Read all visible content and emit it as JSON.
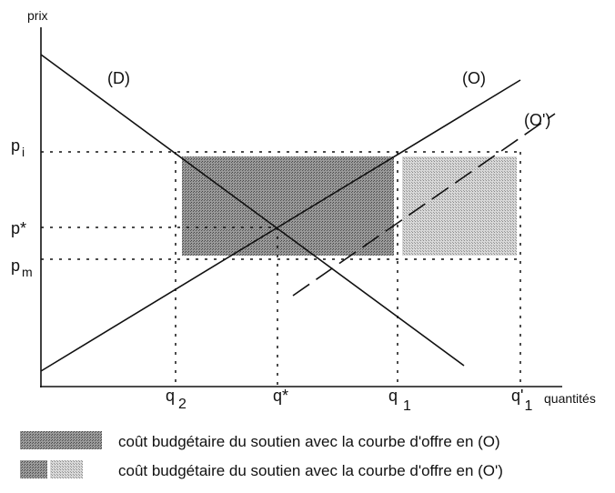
{
  "axes": {
    "y_label": "prix",
    "x_label": "quantités"
  },
  "curves": {
    "demand": "(D)",
    "supply": "(O)",
    "supply_alt": "(O')"
  },
  "prices": [
    {
      "base": "p",
      "sub": "i"
    },
    {
      "base": "p*"
    },
    {
      "base": "p",
      "sub": "m"
    }
  ],
  "quantities": [
    {
      "base": "q",
      "sub": "2"
    },
    {
      "base": "q*"
    },
    {
      "base": "q",
      "sub": "1"
    },
    {
      "base": "q'",
      "sub": "1"
    }
  ],
  "legend": [
    "coût budgétaire du soutien avec la courbe d'offre en (O)",
    "coût budgétaire du soutien avec la courbe d'offre en (O')"
  ]
}
